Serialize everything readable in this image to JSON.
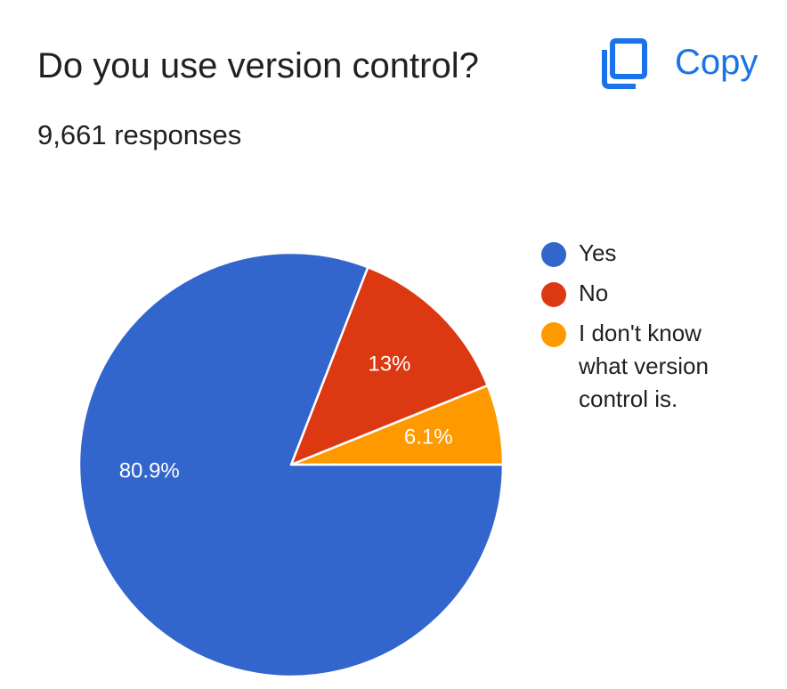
{
  "header": {
    "title": "Do you use version control?",
    "copy_label": "Copy",
    "copy_icon": "copy-icon",
    "responses": "9,661 responses"
  },
  "colors": {
    "accent": "#1a73e8",
    "yes": "#3366cc",
    "no": "#dc3912",
    "unknown": "#ff9900"
  },
  "chart_data": {
    "type": "pie",
    "title": "Do you use version control?",
    "total_responses": 9661,
    "slices": [
      {
        "label": "Yes",
        "value": 80.9,
        "display": "80.9%",
        "color": "#3366cc"
      },
      {
        "label": "No",
        "value": 13.0,
        "display": "13%",
        "color": "#dc3912"
      },
      {
        "label": "I don't know what version control is.",
        "value": 6.1,
        "display": "6.1%",
        "color": "#ff9900"
      }
    ],
    "legend": {
      "position": "right",
      "items": [
        [
          "Yes"
        ],
        [
          "No"
        ],
        [
          "I don't know",
          "what version",
          "control is."
        ]
      ]
    }
  }
}
